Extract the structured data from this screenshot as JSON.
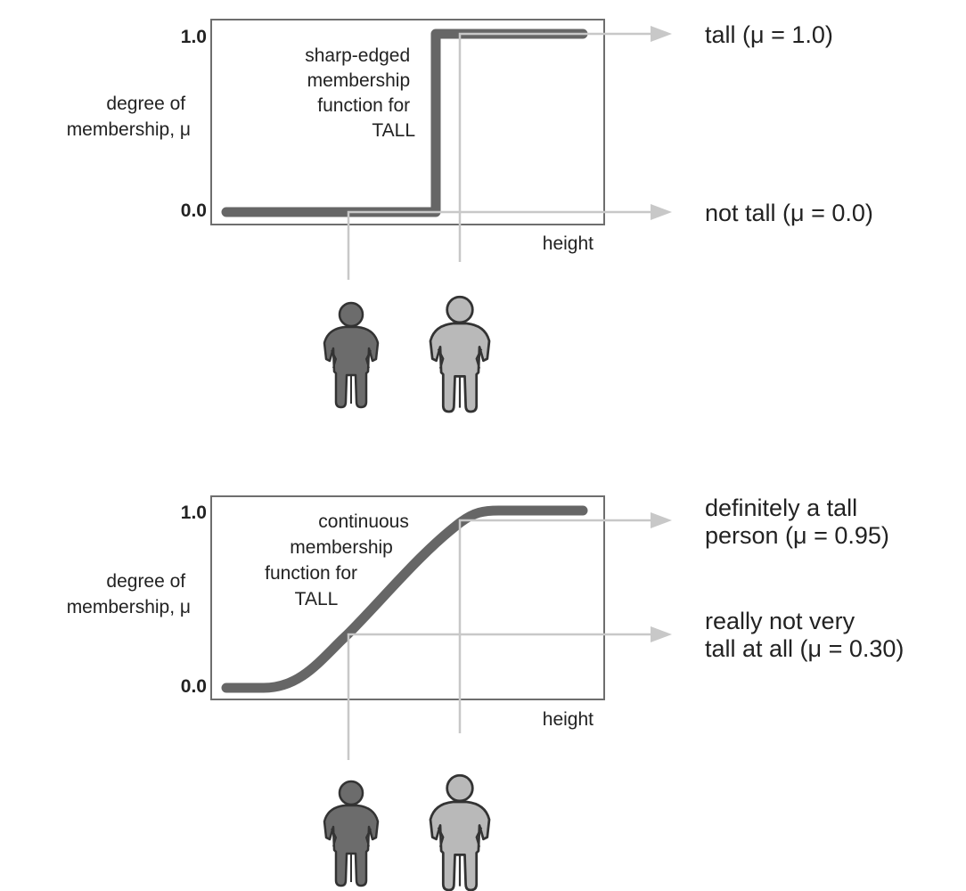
{
  "colors": {
    "curve": "#666666",
    "frame": "#6e6e6e",
    "pointer_lines": "#c8c8c8",
    "short_person": "#6c6c6c",
    "tall_person": "#b9b9b9",
    "text": "#222222"
  },
  "panels": [
    {
      "ytick_top": "1.0",
      "ytick_bottom": "0.0",
      "ylabel_line1": "degree of",
      "ylabel_line2": "membership, μ",
      "xlabel": "height",
      "curve_label": [
        "sharp-edged",
        "membership",
        "function for",
        "TALL"
      ],
      "outcome_upper": [
        "tall (μ = 1.0)"
      ],
      "outcome_lower": [
        "not tall (μ = 0.0)"
      ],
      "short_person_icon": "person-icon",
      "tall_person_icon": "person-icon"
    },
    {
      "ytick_top": "1.0",
      "ytick_bottom": "0.0",
      "ylabel_line1": "degree of",
      "ylabel_line2": "membership, μ",
      "xlabel": "height",
      "curve_label": [
        "continuous",
        "membership",
        "function for",
        "TALL"
      ],
      "outcome_upper": [
        "definitely a tall",
        "person (μ = 0.95)"
      ],
      "outcome_lower": [
        "really not very",
        "tall at all (μ = 0.30)"
      ],
      "short_person_icon": "person-icon",
      "tall_person_icon": "person-icon"
    }
  ]
}
